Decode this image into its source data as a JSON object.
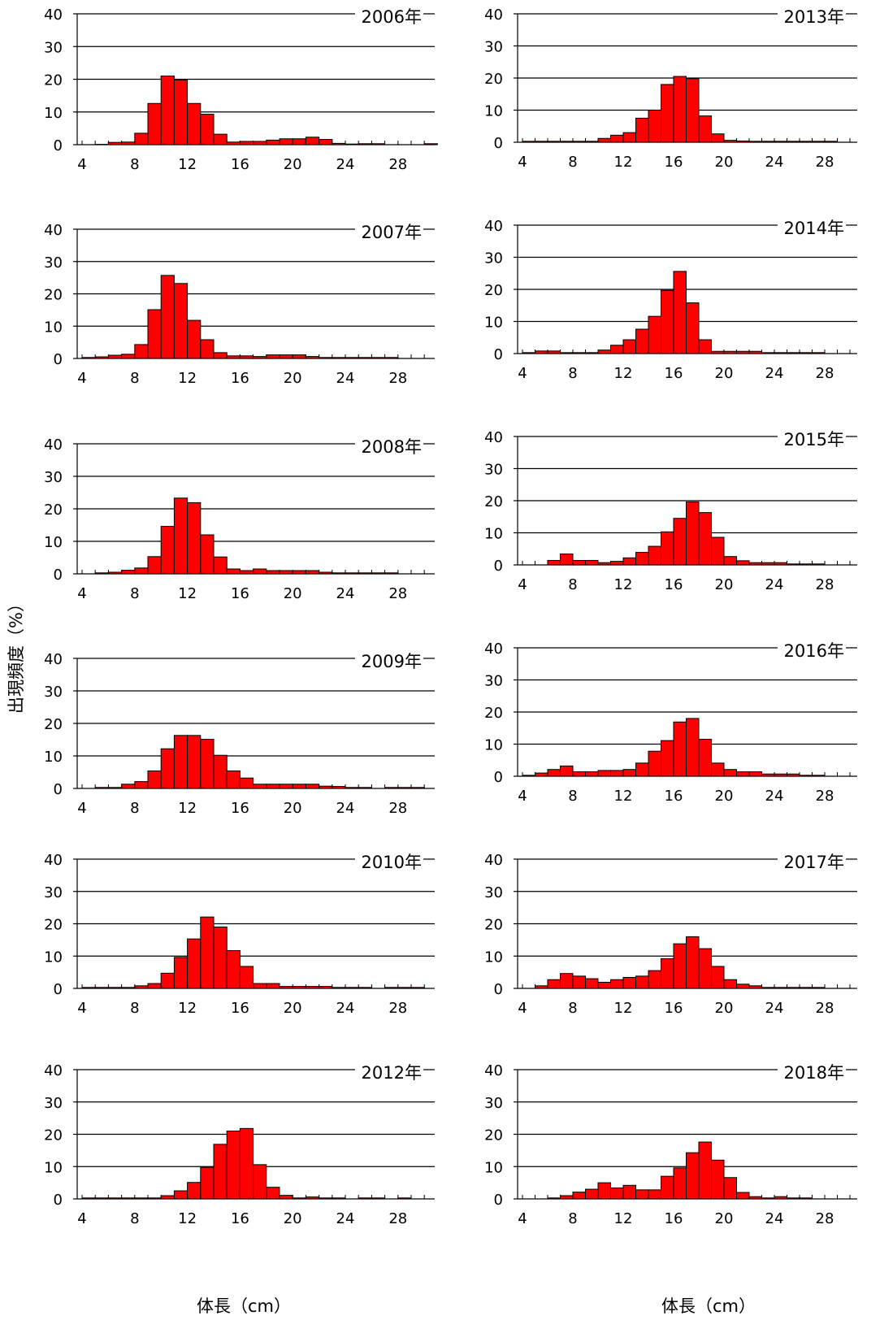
{
  "ylabel": "出現頻度（%）",
  "xlabel": "体長（cm）",
  "colors": {
    "bar": "#ff0000",
    "bar_edge": "#000000",
    "grid": "#000000"
  },
  "chart_data": [
    {
      "type": "bar",
      "title": "2006年",
      "x_start": 4,
      "bin": 1,
      "xticks": [
        4,
        8,
        12,
        16,
        20,
        24,
        28
      ],
      "ylim": [
        0,
        40
      ],
      "yticks": [
        0,
        10,
        20,
        30,
        40
      ],
      "grid": true,
      "values": [
        0,
        0.1,
        0.7,
        0.8,
        3.5,
        12.6,
        21.0,
        19.8,
        12.6,
        9.3,
        3.2,
        0.8,
        1.0,
        1.0,
        1.4,
        1.8,
        1.8,
        2.3,
        1.6,
        0.4,
        0.2,
        0.3,
        0.3,
        0,
        0,
        0,
        0.3
      ]
    },
    {
      "type": "bar",
      "title": "2013年",
      "x_start": 4,
      "bin": 1,
      "xticks": [
        4,
        8,
        12,
        16,
        20,
        24,
        28
      ],
      "ylim": [
        0,
        40
      ],
      "yticks": [
        0,
        10,
        20,
        30,
        40
      ],
      "grid": true,
      "values": [
        0.3,
        0.3,
        0.3,
        0.3,
        0.3,
        0.3,
        1.2,
        2.2,
        3.0,
        7.5,
        10.0,
        18.0,
        20.5,
        19.8,
        8.2,
        2.6,
        0.6,
        0.4,
        0.3,
        0.3,
        0.3,
        0.3,
        0.3,
        0.3,
        0.3,
        0,
        0
      ]
    },
    {
      "type": "bar",
      "title": "2007年",
      "x_start": 4,
      "bin": 1,
      "xticks": [
        4,
        8,
        12,
        16,
        20,
        24,
        28
      ],
      "ylim": [
        0,
        40
      ],
      "yticks": [
        0,
        10,
        20,
        30,
        40
      ],
      "grid": true,
      "values": [
        0.3,
        0.5,
        1.0,
        1.3,
        4.3,
        15.1,
        25.7,
        23.2,
        11.8,
        5.8,
        1.8,
        0.8,
        0.8,
        0.6,
        1.1,
        1.1,
        1.1,
        0.6,
        0.3,
        0.3,
        0.3,
        0.3,
        0.3,
        0.3,
        0,
        0,
        0
      ]
    },
    {
      "type": "bar",
      "title": "2014年",
      "x_start": 4,
      "bin": 1,
      "xticks": [
        4,
        8,
        12,
        16,
        20,
        24,
        28
      ],
      "ylim": [
        0,
        40
      ],
      "yticks": [
        0,
        10,
        20,
        30,
        40
      ],
      "grid": true,
      "values": [
        0.3,
        0.8,
        0.8,
        0.3,
        0.3,
        0.3,
        1.1,
        2.6,
        4.3,
        7.6,
        11.6,
        19.7,
        25.6,
        15.8,
        4.3,
        0.7,
        0.7,
        0.7,
        0.7,
        0.3,
        0.3,
        0.3,
        0.3,
        0.3,
        0,
        0,
        0
      ]
    },
    {
      "type": "bar",
      "title": "2008年",
      "x_start": 4,
      "bin": 1,
      "xticks": [
        4,
        8,
        12,
        16,
        20,
        24,
        28
      ],
      "ylim": [
        0,
        40
      ],
      "yticks": [
        0,
        10,
        20,
        30,
        40
      ],
      "grid": true,
      "values": [
        0,
        0.3,
        0.5,
        1.1,
        1.8,
        5.3,
        14.6,
        23.3,
        21.9,
        12.0,
        5.2,
        1.5,
        1.0,
        1.5,
        1.0,
        1.0,
        1.0,
        1.0,
        0.5,
        0.3,
        0.3,
        0.3,
        0.3,
        0.3,
        0,
        0,
        0
      ]
    },
    {
      "type": "bar",
      "title": "2015年",
      "x_start": 4,
      "bin": 1,
      "xticks": [
        4,
        8,
        12,
        16,
        20,
        24,
        28
      ],
      "ylim": [
        0,
        40
      ],
      "yticks": [
        0,
        10,
        20,
        30,
        40
      ],
      "grid": true,
      "values": [
        0,
        0,
        1.4,
        3.4,
        1.4,
        1.4,
        0.7,
        1.1,
        2.2,
        3.9,
        5.8,
        10.3,
        14.5,
        19.6,
        16.3,
        8.6,
        2.6,
        1.3,
        0.7,
        0.7,
        0.7,
        0.3,
        0.3,
        0.3,
        0,
        0,
        0
      ]
    },
    {
      "type": "bar",
      "title": "2009年",
      "x_start": 4,
      "bin": 1,
      "xticks": [
        4,
        8,
        12,
        16,
        20,
        24,
        28
      ],
      "ylim": [
        0,
        40
      ],
      "yticks": [
        0,
        10,
        20,
        30,
        40
      ],
      "grid": true,
      "values": [
        0,
        0.3,
        0.3,
        1.3,
        2.1,
        5.4,
        12.2,
        16.3,
        16.3,
        15.1,
        10.2,
        5.4,
        3.2,
        1.3,
        1.3,
        1.3,
        1.3,
        1.3,
        0.7,
        0.6,
        0.3,
        0.3,
        0,
        0.3,
        0.3,
        0.3,
        0
      ]
    },
    {
      "type": "bar",
      "title": "2016年",
      "x_start": 4,
      "bin": 1,
      "xticks": [
        4,
        8,
        12,
        16,
        20,
        24,
        28
      ],
      "ylim": [
        0,
        40
      ],
      "yticks": [
        0,
        10,
        20,
        30,
        40
      ],
      "grid": true,
      "values": [
        0.3,
        1.0,
        2.1,
        3.2,
        1.4,
        1.4,
        1.8,
        1.8,
        2.1,
        4.1,
        7.8,
        11.1,
        16.9,
        18.0,
        11.5,
        4.1,
        2.1,
        1.4,
        1.4,
        0.7,
        0.7,
        0.7,
        0.3,
        0.3,
        0,
        0,
        0
      ]
    },
    {
      "type": "bar",
      "title": "2010年",
      "x_start": 4,
      "bin": 1,
      "xticks": [
        4,
        8,
        12,
        16,
        20,
        24,
        28
      ],
      "ylim": [
        0,
        40
      ],
      "yticks": [
        0,
        10,
        20,
        30,
        40
      ],
      "grid": true,
      "values": [
        0.3,
        0.3,
        0.3,
        0.3,
        0.8,
        1.5,
        4.7,
        9.6,
        15.3,
        22.1,
        19.0,
        11.7,
        6.8,
        1.5,
        1.5,
        0.6,
        0.6,
        0.6,
        0.6,
        0.3,
        0.3,
        0.3,
        0,
        0.3,
        0.3,
        0.3,
        0
      ]
    },
    {
      "type": "bar",
      "title": "2017年",
      "x_start": 4,
      "bin": 1,
      "xticks": [
        4,
        8,
        12,
        16,
        20,
        24,
        28
      ],
      "ylim": [
        0,
        40
      ],
      "yticks": [
        0,
        10,
        20,
        30,
        40
      ],
      "grid": true,
      "values": [
        0,
        0.8,
        2.7,
        4.6,
        3.8,
        3.0,
        1.9,
        2.7,
        3.4,
        3.8,
        5.5,
        9.2,
        13.8,
        16.0,
        12.3,
        6.8,
        2.7,
        1.3,
        0.8,
        0.3,
        0.3,
        0.3,
        0.3,
        0.3,
        0,
        0,
        0
      ]
    },
    {
      "type": "bar",
      "title": "2012年",
      "x_start": 4,
      "bin": 1,
      "xticks": [
        4,
        8,
        12,
        16,
        20,
        24,
        28
      ],
      "ylim": [
        0,
        40
      ],
      "yticks": [
        0,
        10,
        20,
        30,
        40
      ],
      "grid": true,
      "values": [
        0.3,
        0.3,
        0.3,
        0.3,
        0.3,
        0.3,
        1.0,
        2.5,
        5.1,
        9.8,
        16.9,
        21.0,
        21.8,
        10.6,
        3.6,
        1.1,
        0.3,
        0.6,
        0.3,
        0.3,
        0,
        0.3,
        0.3,
        0,
        0.3,
        0,
        0
      ]
    },
    {
      "type": "bar",
      "title": "2018年",
      "x_start": 4,
      "bin": 1,
      "xticks": [
        4,
        8,
        12,
        16,
        20,
        24,
        28
      ],
      "ylim": [
        0,
        40
      ],
      "yticks": [
        0,
        10,
        20,
        30,
        40
      ],
      "grid": true,
      "values": [
        0,
        0,
        0.3,
        1.0,
        2.1,
        3.0,
        5.0,
        3.4,
        4.2,
        2.8,
        2.8,
        7.0,
        9.6,
        14.3,
        17.6,
        12.0,
        6.6,
        2.0,
        0.7,
        0.3,
        0.7,
        0.3,
        0.3,
        0,
        0,
        0,
        0
      ]
    }
  ]
}
